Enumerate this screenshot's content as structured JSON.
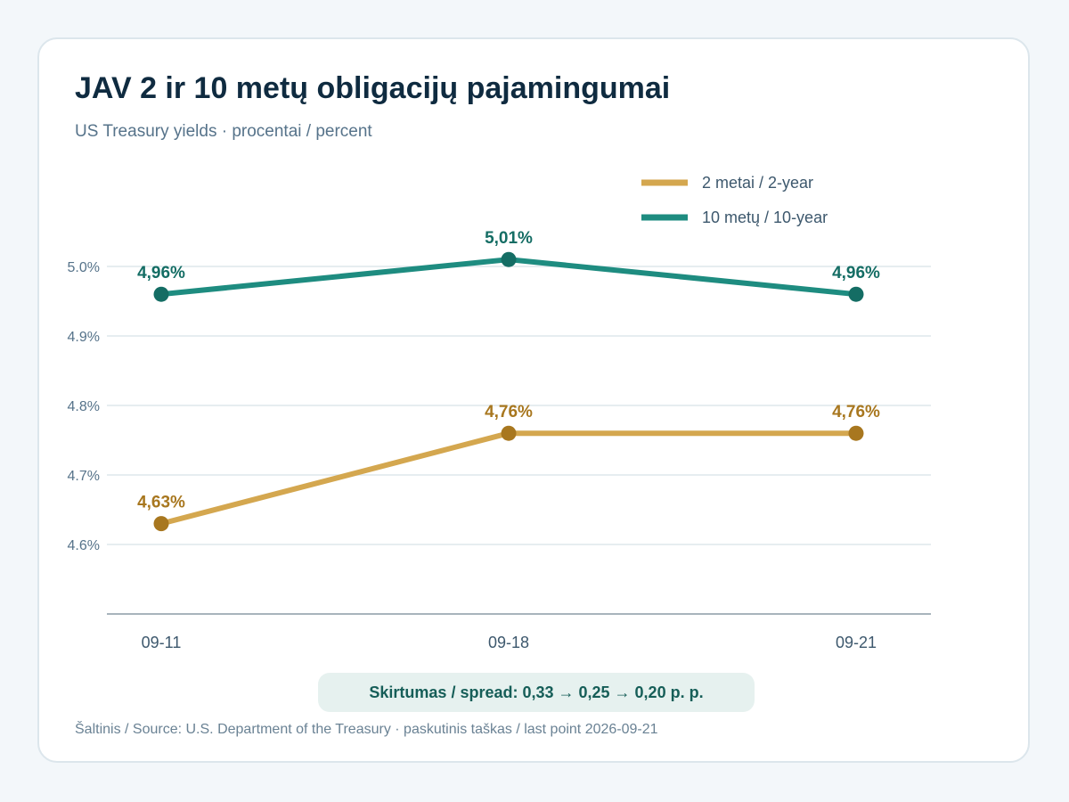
{
  "title": "JAV 2 ir 10 metų obligacijų pajamingumai",
  "subtitle": "US Treasury yields · procentai / percent",
  "spread_note": "Skirtumas / spread: 0,33 → 0,25 → 0,20 p. p.",
  "source_note": "Šaltinis / Source: U.S. Department of the Treasury · paskutinis taškas / last point 2026-09-21",
  "colors": {
    "two_year_line": "#d4a74f",
    "two_year_point": "#a8771f",
    "two_year_label": "#a8771f",
    "ten_year_line": "#1e8c80",
    "ten_year_point": "#146d64",
    "ten_year_label": "#146d64",
    "grid": "#dde7ec",
    "axis": "#8b9ba6"
  },
  "chart_data": {
    "type": "line",
    "title": "JAV 2 ir 10 metų obligacijų pajamingumai",
    "subtitle": "US Treasury yields · procentai / percent",
    "xlabel": "",
    "ylabel": "",
    "categories": [
      "09-11",
      "09-18",
      "09-21"
    ],
    "ylim": [
      4.5,
      5.05
    ],
    "y_ticks": [
      4.6,
      4.7,
      4.8,
      4.9,
      5.0
    ],
    "y_tick_labels": [
      "4.6%",
      "4.7%",
      "4.8%",
      "4.9%",
      "5.0%"
    ],
    "grid": true,
    "legend_position": "top-right",
    "series": [
      {
        "key": "two_year",
        "name": "2 metai / 2-year",
        "values": [
          4.63,
          4.76,
          4.76
        ],
        "labels": [
          "4,63%",
          "4,76%",
          "4,76%"
        ]
      },
      {
        "key": "ten_year",
        "name": "10 metų / 10-year",
        "values": [
          4.96,
          5.01,
          4.96
        ],
        "labels": [
          "4,96%",
          "5,01%",
          "4,96%"
        ]
      }
    ]
  }
}
